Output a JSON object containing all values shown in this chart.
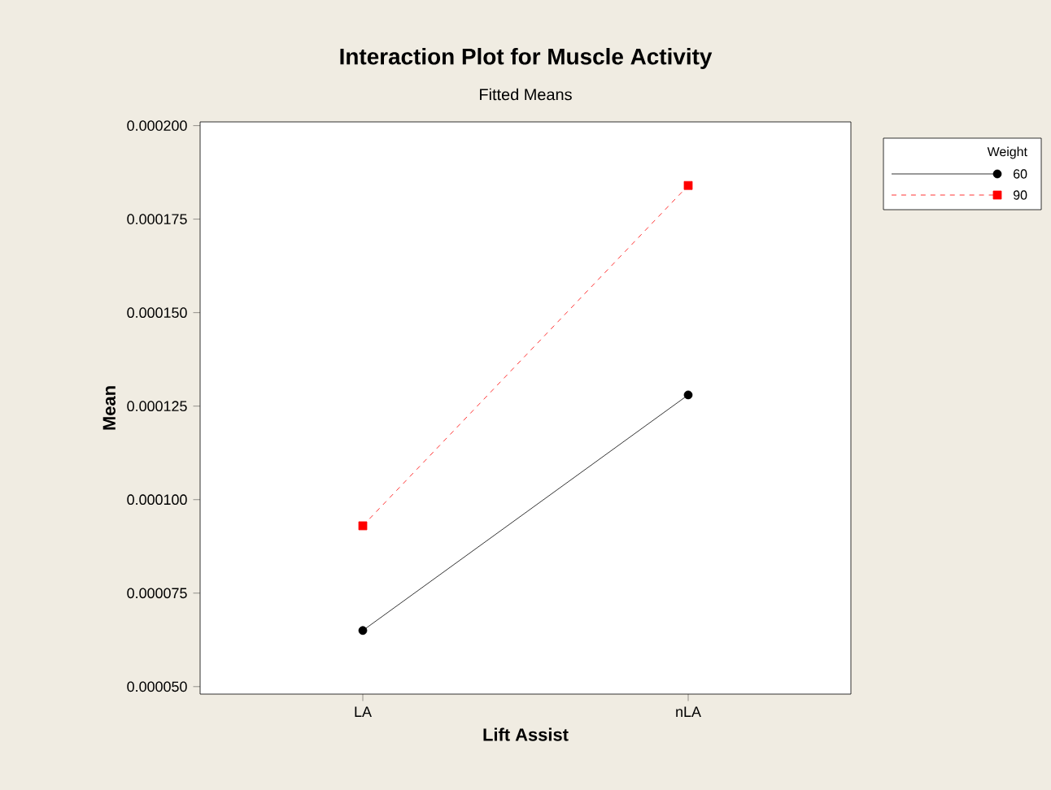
{
  "chart_data": {
    "type": "line",
    "title": "Interaction Plot for Muscle Activity",
    "subtitle": "Fitted Means",
    "xlabel": "Lift Assist",
    "ylabel": "Mean",
    "legend_title": "Weight",
    "categories": [
      "LA",
      "nLA"
    ],
    "series": [
      {
        "name": "60",
        "color": "#000000",
        "marker": "circle",
        "line_style": "solid",
        "values": [
          6.5e-05,
          0.000128
        ]
      },
      {
        "name": "90",
        "color": "#ff0000",
        "marker": "square",
        "line_style": "dashed",
        "values": [
          9.3e-05,
          0.000184
        ]
      }
    ],
    "ylim": [
      4.8e-05,
      0.000201
    ],
    "yticks": [
      {
        "value": 5e-05,
        "label": "0.000050"
      },
      {
        "value": 7.5e-05,
        "label": "0.000075"
      },
      {
        "value": 0.0001,
        "label": "0.000100"
      },
      {
        "value": 0.000125,
        "label": "0.000125"
      },
      {
        "value": 0.00015,
        "label": "0.000150"
      },
      {
        "value": 0.000175,
        "label": "0.000175"
      },
      {
        "value": 0.0002,
        "label": "0.000200"
      }
    ],
    "grid": false,
    "legend": "right"
  }
}
